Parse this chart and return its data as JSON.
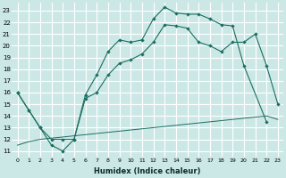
{
  "xlabel": "Humidex (Indice chaleur)",
  "bg_color": "#cce8e6",
  "grid_color": "#b8d8d5",
  "line_color": "#1a6e60",
  "xlim": [
    -0.5,
    23.5
  ],
  "ylim": [
    10.5,
    23.7
  ],
  "xticks": [
    0,
    1,
    2,
    3,
    4,
    5,
    6,
    7,
    8,
    9,
    10,
    11,
    12,
    13,
    14,
    15,
    16,
    17,
    18,
    19,
    20,
    21,
    22,
    23
  ],
  "yticks": [
    11,
    12,
    13,
    14,
    15,
    16,
    17,
    18,
    19,
    20,
    21,
    22,
    23
  ],
  "s1x": [
    0,
    1,
    2,
    3,
    4,
    5,
    6,
    7,
    8,
    9,
    10,
    11,
    12,
    13,
    14,
    15,
    16,
    17,
    18,
    19,
    20,
    22
  ],
  "s1y": [
    16,
    14.5,
    13,
    11.5,
    11,
    12,
    15.8,
    17.5,
    19.5,
    20.5,
    20.3,
    20.5,
    22.3,
    23.3,
    22.8,
    22.7,
    22.7,
    22.3,
    21.8,
    21.7,
    18.3,
    13.5
  ],
  "s2x": [
    0,
    1,
    2,
    3,
    4,
    5,
    6,
    7,
    8,
    9,
    10,
    11,
    12,
    13,
    14,
    15,
    16,
    17,
    18,
    19,
    20,
    21,
    22,
    23
  ],
  "s2y": [
    16,
    14.5,
    13,
    12,
    12,
    12,
    15.5,
    16,
    17.5,
    18.5,
    18.8,
    19.3,
    20.3,
    21.8,
    21.7,
    21.5,
    20.3,
    20.0,
    19.5,
    20.3,
    20.3,
    21.0,
    18.3,
    15.0
  ],
  "s3x": [
    0,
    1,
    2,
    3,
    4,
    5,
    6,
    7,
    8,
    9,
    10,
    11,
    12,
    13,
    14,
    15,
    16,
    17,
    18,
    19,
    20,
    21,
    22,
    23
  ],
  "s3y": [
    11.5,
    11.8,
    12.0,
    12.1,
    12.2,
    12.3,
    12.4,
    12.5,
    12.6,
    12.7,
    12.8,
    12.9,
    13.0,
    13.1,
    13.2,
    13.3,
    13.4,
    13.5,
    13.6,
    13.7,
    13.8,
    13.9,
    14.0,
    13.7
  ]
}
